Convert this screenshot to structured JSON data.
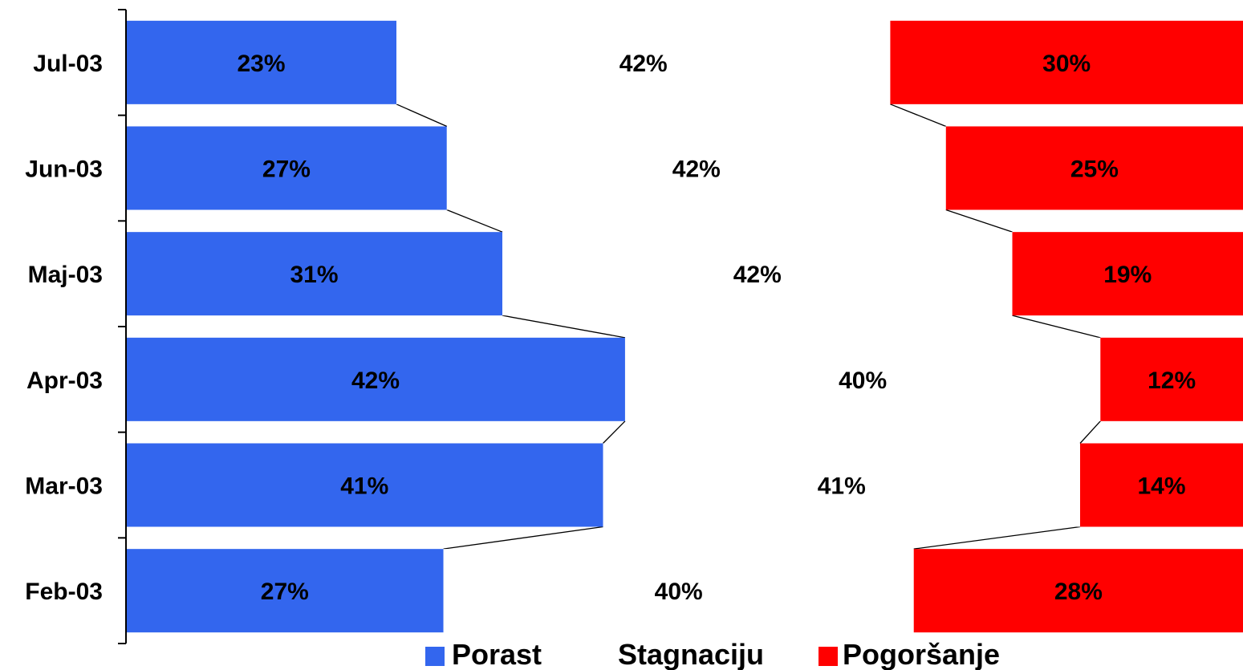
{
  "chart_data": {
    "type": "bar",
    "stacked": "100%",
    "orientation": "horizontal",
    "categories": [
      "Jul-03",
      "Jun-03",
      "Maj-03",
      "Apr-03",
      "Mar-03",
      "Feb-03"
    ],
    "series": [
      {
        "name": "Porast",
        "values": [
          23,
          27,
          31,
          42,
          41,
          27
        ],
        "color": "#3366ee"
      },
      {
        "name": "Stagnaciju",
        "values": [
          42,
          42,
          42,
          40,
          41,
          40
        ],
        "color": "#ffffff"
      },
      {
        "name": "Pogoršanje",
        "values": [
          30,
          25,
          19,
          12,
          14,
          28
        ],
        "color": "#ff0000"
      }
    ],
    "value_suffix": "%",
    "series_lines": true,
    "legend_position": "bottom",
    "grid": false
  }
}
